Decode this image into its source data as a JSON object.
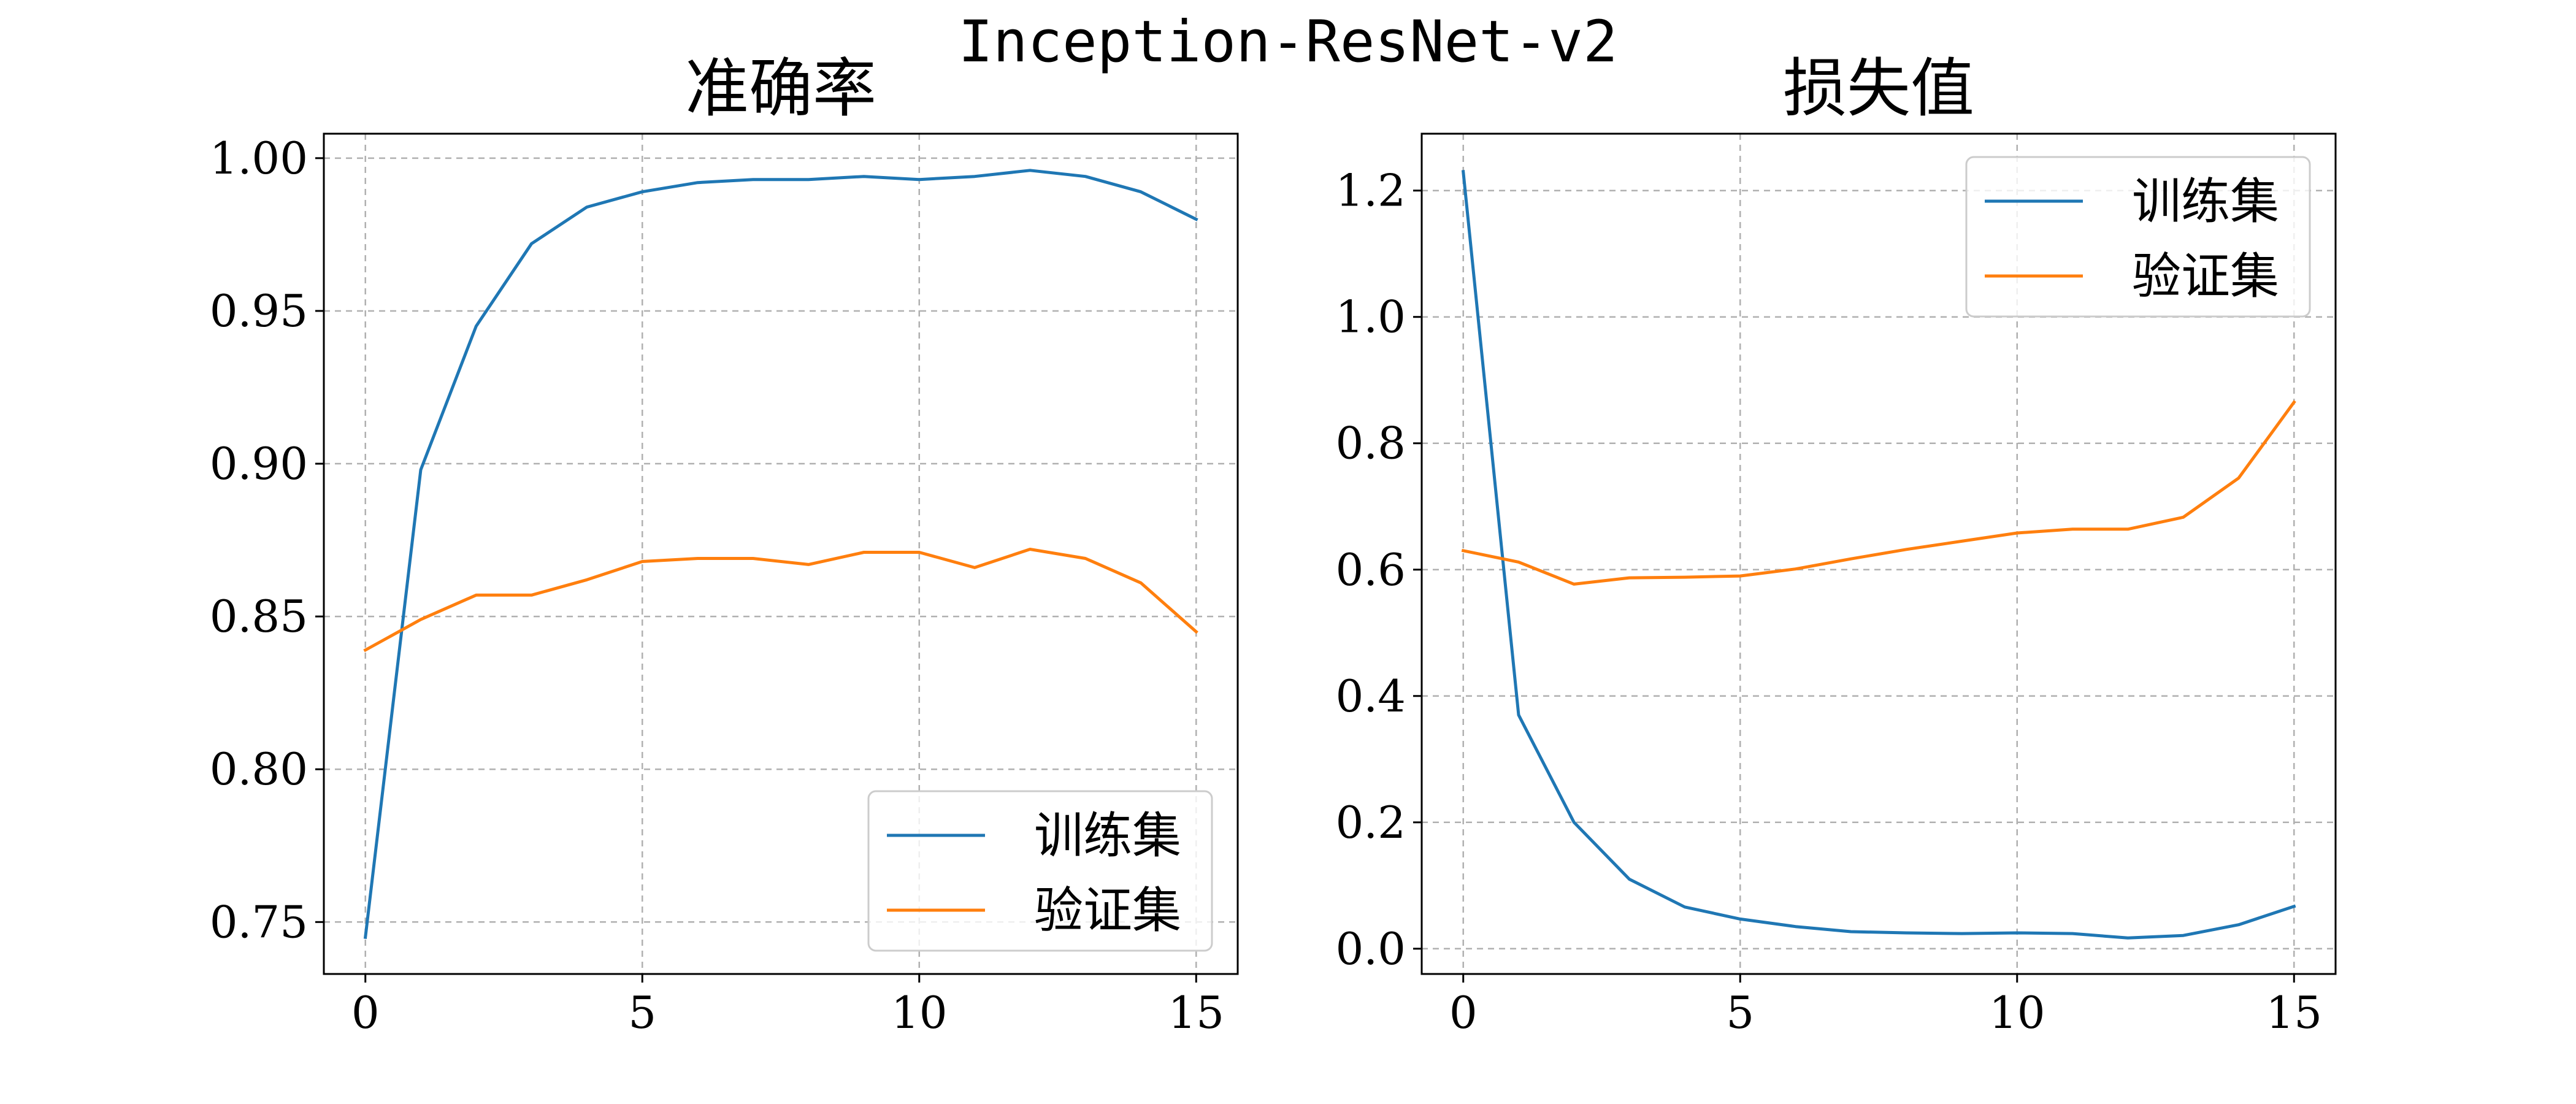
{
  "figure": {
    "title": "Inception-ResNet-v2"
  },
  "chart_data": [
    {
      "type": "line",
      "title": "准确率",
      "xlabel": "",
      "ylabel": "",
      "xlim": [
        -0.75,
        15.75
      ],
      "ylim": [
        0.733,
        1.008
      ],
      "xticks": [
        "0",
        "5",
        "10",
        "15"
      ],
      "yticks": [
        "0.75",
        "0.80",
        "0.85",
        "0.90",
        "0.95",
        "1.00"
      ],
      "grid": true,
      "legend_position": "lower-right",
      "x": [
        0,
        1,
        2,
        3,
        4,
        5,
        6,
        7,
        8,
        9,
        10,
        11,
        12,
        13,
        14,
        15
      ],
      "series": [
        {
          "name": "训练集",
          "color": "#1f77b4",
          "values": [
            0.745,
            0.898,
            0.945,
            0.972,
            0.984,
            0.989,
            0.992,
            0.993,
            0.993,
            0.994,
            0.993,
            0.994,
            0.996,
            0.994,
            0.989,
            0.98
          ]
        },
        {
          "name": "验证集",
          "color": "#ff7f0e",
          "values": [
            0.839,
            0.849,
            0.857,
            0.857,
            0.862,
            0.868,
            0.869,
            0.869,
            0.867,
            0.871,
            0.871,
            0.866,
            0.872,
            0.869,
            0.861,
            0.845
          ]
        }
      ]
    },
    {
      "type": "line",
      "title": "损失值",
      "xlabel": "",
      "ylabel": "",
      "xlim": [
        -0.75,
        15.75
      ],
      "ylim": [
        -0.04,
        1.29
      ],
      "xticks": [
        "0",
        "5",
        "10",
        "15"
      ],
      "yticks": [
        "0.0",
        "0.2",
        "0.4",
        "0.6",
        "0.8",
        "1.0",
        "1.2"
      ],
      "grid": true,
      "legend_position": "upper-right",
      "x": [
        0,
        1,
        2,
        3,
        4,
        5,
        6,
        7,
        8,
        9,
        10,
        11,
        12,
        13,
        14,
        15
      ],
      "series": [
        {
          "name": "训练集",
          "color": "#1f77b4",
          "values": [
            1.23,
            0.37,
            0.2,
            0.11,
            0.066,
            0.047,
            0.035,
            0.027,
            0.025,
            0.024,
            0.025,
            0.024,
            0.017,
            0.021,
            0.038,
            0.067
          ]
        },
        {
          "name": "验证集",
          "color": "#ff7f0e",
          "values": [
            0.63,
            0.612,
            0.577,
            0.587,
            0.588,
            0.59,
            0.601,
            0.617,
            0.632,
            0.645,
            0.658,
            0.664,
            0.664,
            0.683,
            0.745,
            0.865
          ]
        }
      ]
    }
  ]
}
